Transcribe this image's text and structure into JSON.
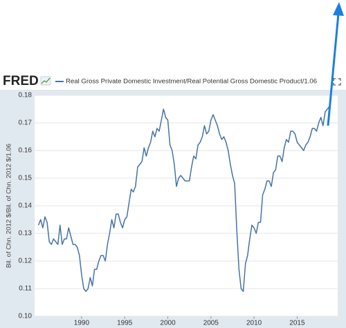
{
  "chart_data": {
    "type": "line",
    "logo": "FRED",
    "legend_label": "Real Gross Private Domestic Investment/Real Potential Gross Domestic Product/1.06",
    "ylabel": "Bil. of Chn. 2012 $/Bil. of Chn. 2012 $/1.06",
    "color": "#4572a7",
    "grid": true,
    "x": [
      1985,
      1985.25,
      1985.5,
      1985.75,
      1986,
      1986.25,
      1986.5,
      1986.75,
      1987,
      1987.25,
      1987.5,
      1987.75,
      1988,
      1988.25,
      1988.5,
      1988.75,
      1989,
      1989.25,
      1989.5,
      1989.75,
      1990,
      1990.25,
      1990.5,
      1990.75,
      1991,
      1991.25,
      1991.5,
      1991.75,
      1992,
      1992.25,
      1992.5,
      1992.75,
      1993,
      1993.25,
      1993.5,
      1993.75,
      1994,
      1994.25,
      1994.5,
      1994.75,
      1995,
      1995.25,
      1995.5,
      1995.75,
      1996,
      1996.25,
      1996.5,
      1996.75,
      1997,
      1997.25,
      1997.5,
      1997.75,
      1998,
      1998.25,
      1998.5,
      1998.75,
      1999,
      1999.25,
      1999.5,
      1999.75,
      2000,
      2000.25,
      2000.5,
      2000.75,
      2001,
      2001.25,
      2001.5,
      2001.75,
      2002,
      2002.25,
      2002.5,
      2002.75,
      2003,
      2003.25,
      2003.5,
      2003.75,
      2004,
      2004.25,
      2004.5,
      2004.75,
      2005,
      2005.25,
      2005.5,
      2005.75,
      2006,
      2006.25,
      2006.5,
      2006.75,
      2007,
      2007.25,
      2007.5,
      2007.75,
      2008,
      2008.25,
      2008.5,
      2008.75,
      2009,
      2009.25,
      2009.5,
      2009.75,
      2010,
      2010.25,
      2010.5,
      2010.75,
      2011,
      2011.25,
      2011.5,
      2011.75,
      2012,
      2012.25,
      2012.5,
      2012.75,
      2013,
      2013.25,
      2013.5,
      2013.75,
      2014,
      2014.25,
      2014.5,
      2014.75,
      2015,
      2015.25,
      2015.5,
      2015.75,
      2016,
      2016.25,
      2016.5,
      2016.75,
      2017,
      2017.25,
      2017.5,
      2017.75,
      2018,
      2018.25,
      2018.5,
      2018.75
    ],
    "values": [
      0.133,
      0.135,
      0.132,
      0.136,
      0.134,
      0.127,
      0.126,
      0.128,
      0.127,
      0.126,
      0.133,
      0.126,
      0.128,
      0.128,
      0.132,
      0.129,
      0.126,
      0.126,
      0.125,
      0.122,
      0.115,
      0.11,
      0.109,
      0.11,
      0.114,
      0.111,
      0.117,
      0.117,
      0.12,
      0.122,
      0.122,
      0.12,
      0.126,
      0.13,
      0.135,
      0.132,
      0.137,
      0.137,
      0.134,
      0.132,
      0.135,
      0.136,
      0.141,
      0.146,
      0.145,
      0.147,
      0.154,
      0.155,
      0.156,
      0.161,
      0.158,
      0.161,
      0.163,
      0.167,
      0.165,
      0.168,
      0.167,
      0.171,
      0.175,
      0.172,
      0.171,
      0.162,
      0.16,
      0.155,
      0.147,
      0.15,
      0.151,
      0.15,
      0.149,
      0.149,
      0.149,
      0.154,
      0.158,
      0.157,
      0.162,
      0.163,
      0.165,
      0.169,
      0.166,
      0.167,
      0.171,
      0.173,
      0.171,
      0.169,
      0.166,
      0.164,
      0.165,
      0.163,
      0.16,
      0.155,
      0.151,
      0.148,
      0.131,
      0.117,
      0.11,
      0.109,
      0.119,
      0.122,
      0.128,
      0.133,
      0.132,
      0.13,
      0.134,
      0.134,
      0.144,
      0.146,
      0.149,
      0.149,
      0.147,
      0.152,
      0.153,
      0.158,
      0.158,
      0.156,
      0.161,
      0.164,
      0.163,
      0.167,
      0.167,
      0.166,
      0.163,
      0.162,
      0.161,
      0.16,
      0.162,
      0.163,
      0.165,
      0.168,
      0.168,
      0.167,
      0.17,
      0.172,
      0.169,
      0.174,
      0.175,
      0.176
    ],
    "xlim": [
      1984.55,
      2019.7
    ],
    "xticks": [
      1990,
      1995,
      2000,
      2005,
      2010,
      2015
    ],
    "ylim": [
      0.1,
      0.18
    ],
    "yticks": [
      {
        "value": 0.1,
        "label": "0.10"
      },
      0.11,
      0.12,
      0.13,
      0.14,
      0.15,
      0.16,
      0.17,
      0.18
    ]
  }
}
